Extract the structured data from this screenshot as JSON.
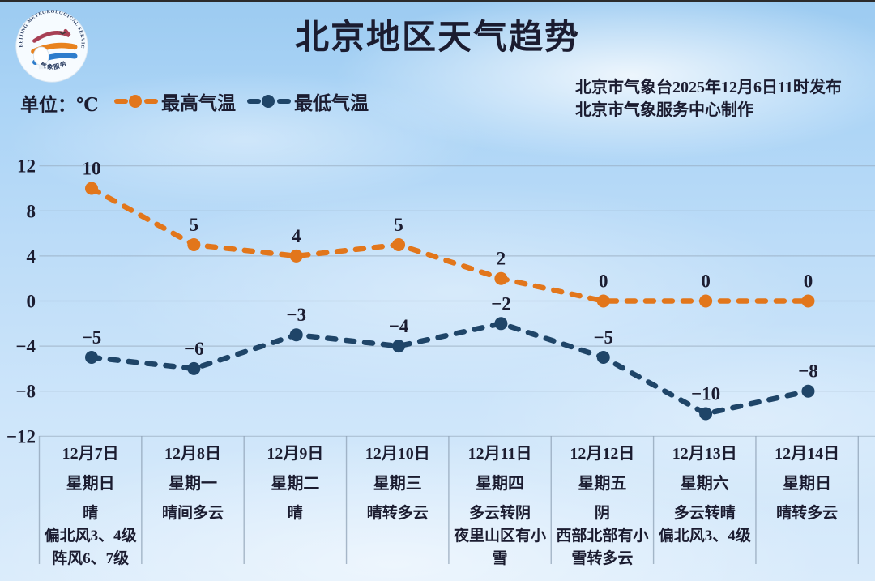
{
  "page": {
    "title": "北京地区天气趋势"
  },
  "header": {
    "unit_label": "单位：℃",
    "issue_line1": "北京市气象台2025年12月6日11时发布",
    "issue_line2": "北京市气象服务中心制作"
  },
  "logo": {
    "text_top": "BEIJING METEOROLOGICAL SERVICE",
    "text_bottom": "气象服务"
  },
  "legend": [
    {
      "label": "最高气温",
      "color": "#E2761B"
    },
    {
      "label": "最低气温",
      "color": "#1F4568"
    }
  ],
  "colors": {
    "max_series": "#E2761B",
    "min_series": "#1F4568",
    "text": "#1b1c30",
    "grid": "#8fa2b5",
    "table_border": "#8fa2b5"
  },
  "chart_data": {
    "type": "line",
    "title": "北京地区天气趋势",
    "unit": "℃",
    "line_style": "dashed",
    "grid": true,
    "legend_position": "top-left",
    "ylim": [
      -12,
      12
    ],
    "yticks": [
      12,
      8,
      4,
      0,
      -4,
      -8,
      -12
    ],
    "categories": [
      "12月7日",
      "12月8日",
      "12月9日",
      "12月10日",
      "12月11日",
      "12月12日",
      "12月13日",
      "12月14日"
    ],
    "weekdays": [
      "星期日",
      "星期一",
      "星期二",
      "星期三",
      "星期四",
      "星期五",
      "星期六",
      "星期日"
    ],
    "weather": [
      [
        "晴",
        "偏北风3、4级",
        "阵风6、7级"
      ],
      [
        "晴间多云"
      ],
      [
        "晴"
      ],
      [
        "晴转多云"
      ],
      [
        "多云转阴",
        "夜里山区有小雪"
      ],
      [
        "阴",
        "西部北部有小雪转多云"
      ],
      [
        "多云转晴",
        "偏北风3、4级"
      ],
      [
        "晴转多云"
      ]
    ],
    "series": [
      {
        "name": "最高气温",
        "color": "#E2761B",
        "values": [
          10,
          5,
          4,
          5,
          2,
          0,
          0,
          0
        ]
      },
      {
        "name": "最低气温",
        "color": "#1F4568",
        "values": [
          -5,
          -6,
          -3,
          -4,
          -2,
          -5,
          -10,
          -8
        ]
      }
    ]
  }
}
